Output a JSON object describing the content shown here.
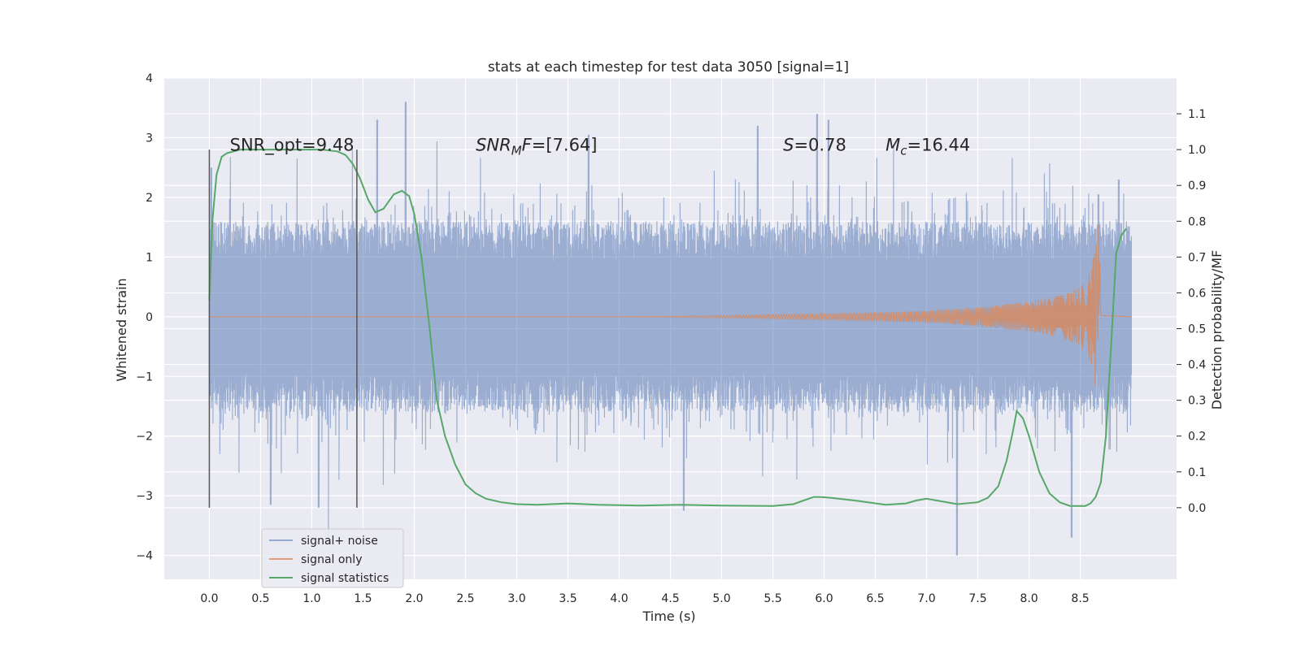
{
  "chart_data": {
    "type": "line",
    "title": "stats at each timestep for test data 3050 [signal=1]",
    "xlabel": "Time (s)",
    "ylabel": "Whitened strain",
    "y2label": "Detection probability/MF",
    "xlim": [
      -0.44,
      9.44
    ],
    "ylim": [
      -4.4,
      4.0
    ],
    "y2lim": [
      -0.2,
      1.2
    ],
    "xticks": [
      0.0,
      0.5,
      1.0,
      1.5,
      2.0,
      2.5,
      3.0,
      3.5,
      4.0,
      4.5,
      5.0,
      5.5,
      6.0,
      6.5,
      7.0,
      7.5,
      8.0,
      8.5
    ],
    "yticks": [
      -4,
      -3,
      -2,
      -1,
      0,
      1,
      2,
      3,
      4
    ],
    "y2ticks": [
      0.0,
      0.1,
      0.2,
      0.3,
      0.4,
      0.5,
      0.6,
      0.7,
      0.8,
      0.9,
      1.0,
      1.1
    ],
    "grid": true,
    "legend_position": "lower-left",
    "annotations": [
      {
        "parts": [
          {
            "t": "SNR_opt=9.48",
            "style": "normal"
          }
        ],
        "x": 0.2,
        "y": 2.88
      },
      {
        "parts": [
          {
            "t": "SNR",
            "style": "italic"
          },
          {
            "t": "M",
            "style": "italic-sub"
          },
          {
            "t": "F",
            "style": "italic"
          },
          {
            "t": "=[7.64]",
            "style": "normal"
          }
        ],
        "x": 2.6,
        "y": 2.88
      },
      {
        "parts": [
          {
            "t": "S",
            "style": "italic"
          },
          {
            "t": "=0.78",
            "style": "normal"
          }
        ],
        "x": 5.6,
        "y": 2.88
      },
      {
        "parts": [
          {
            "t": "M",
            "style": "italic"
          },
          {
            "t": "c",
            "style": "italic-sub"
          },
          {
            "t": "=16.44",
            "style": "normal"
          }
        ],
        "x": 6.6,
        "y": 2.88
      }
    ],
    "vlines": [
      {
        "x": 0.0,
        "ymin": -3.2,
        "ymax": 2.8
      },
      {
        "x": 1.44,
        "ymin": -3.2,
        "ymax": 2.8
      }
    ],
    "series": [
      {
        "name": "signal+ noise",
        "color": "#4c72b0",
        "kind": "noise",
        "x_range": [
          0.0,
          9.0
        ],
        "typical_amplitude": 1.3,
        "extremes": [
          {
            "x": 0.02,
            "y": 2.5
          },
          {
            "x": 0.6,
            "y": -3.15
          },
          {
            "x": 1.07,
            "y": -3.2
          },
          {
            "x": 1.64,
            "y": 3.3
          },
          {
            "x": 1.92,
            "y": 3.6
          },
          {
            "x": 3.7,
            "y": 3.05
          },
          {
            "x": 4.63,
            "y": -3.25
          },
          {
            "x": 5.35,
            "y": 3.2
          },
          {
            "x": 5.93,
            "y": 3.4
          },
          {
            "x": 6.04,
            "y": 3.3
          },
          {
            "x": 7.3,
            "y": -4.0
          },
          {
            "x": 8.42,
            "y": -3.7
          },
          {
            "x": 8.68,
            "y": 2.05
          },
          {
            "x": 8.88,
            "y": 2.3
          }
        ]
      },
      {
        "name": "signal only",
        "color": "#dd8452",
        "kind": "chirp",
        "envelope": [
          [
            0.0,
            0.0
          ],
          [
            4.0,
            0.0
          ],
          [
            5.0,
            0.02
          ],
          [
            6.0,
            0.05
          ],
          [
            7.0,
            0.1
          ],
          [
            7.5,
            0.16
          ],
          [
            8.0,
            0.25
          ],
          [
            8.3,
            0.35
          ],
          [
            8.5,
            0.5
          ],
          [
            8.6,
            0.75
          ],
          [
            8.65,
            1.2
          ],
          [
            8.68,
            1.75
          ],
          [
            8.7,
            0.02
          ],
          [
            9.0,
            0.0
          ]
        ]
      },
      {
        "name": "signal statistics",
        "color": "#55a868",
        "axis": "right",
        "x": [
          0.0,
          0.03,
          0.07,
          0.12,
          0.17,
          0.3,
          0.5,
          0.8,
          1.1,
          1.25,
          1.33,
          1.4,
          1.47,
          1.55,
          1.62,
          1.7,
          1.8,
          1.88,
          1.95,
          2.0,
          2.07,
          2.15,
          2.22,
          2.3,
          2.4,
          2.5,
          2.6,
          2.7,
          2.85,
          3.0,
          3.2,
          3.5,
          3.8,
          4.2,
          4.6,
          5.0,
          5.5,
          5.7,
          5.8,
          5.9,
          5.95,
          6.05,
          6.3,
          6.6,
          6.8,
          6.9,
          7.0,
          7.1,
          7.3,
          7.5,
          7.6,
          7.7,
          7.78,
          7.84,
          7.88,
          7.94,
          8.0,
          8.1,
          8.2,
          8.3,
          8.4,
          8.5,
          8.55,
          8.6,
          8.65,
          8.7,
          8.75,
          8.8,
          8.85,
          8.9,
          8.95
        ],
        "y": [
          0.58,
          0.8,
          0.93,
          0.98,
          0.99,
          1.0,
          1.0,
          1.0,
          1.0,
          0.995,
          0.985,
          0.96,
          0.92,
          0.86,
          0.825,
          0.835,
          0.875,
          0.885,
          0.87,
          0.82,
          0.7,
          0.5,
          0.3,
          0.2,
          0.12,
          0.065,
          0.04,
          0.025,
          0.015,
          0.01,
          0.008,
          0.012,
          0.008,
          0.006,
          0.008,
          0.006,
          0.005,
          0.01,
          0.02,
          0.03,
          0.03,
          0.028,
          0.02,
          0.008,
          0.012,
          0.02,
          0.025,
          0.02,
          0.01,
          0.015,
          0.028,
          0.06,
          0.13,
          0.21,
          0.27,
          0.25,
          0.2,
          0.1,
          0.04,
          0.015,
          0.005,
          0.005,
          0.005,
          0.012,
          0.03,
          0.07,
          0.2,
          0.45,
          0.71,
          0.76,
          0.78
        ]
      }
    ]
  }
}
